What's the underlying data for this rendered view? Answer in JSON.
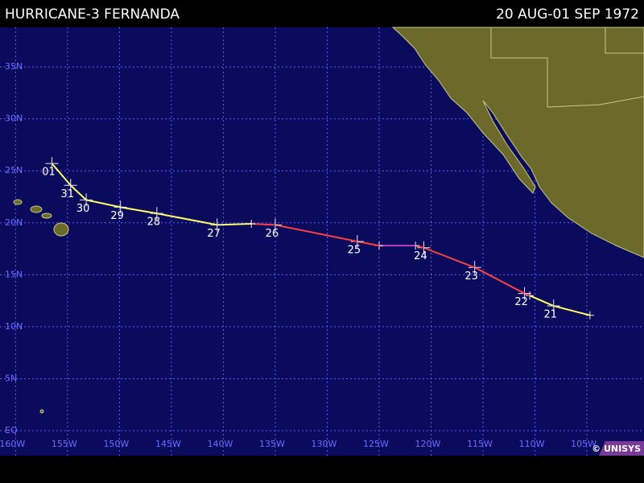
{
  "header": {
    "title": "HURRICANE-3 FERNANDA",
    "dates": "20 AUG-01 SEP 1972"
  },
  "map": {
    "lonlim": [
      161.5,
      99.5
    ],
    "latlim": [
      -2.4,
      38.8
    ],
    "lat_ticks": [
      {
        "value": 35,
        "label": "35N"
      },
      {
        "value": 30,
        "label": "30N"
      },
      {
        "value": 25,
        "label": "25N"
      },
      {
        "value": 20,
        "label": "20N"
      },
      {
        "value": 15,
        "label": "15N"
      },
      {
        "value": 10,
        "label": "10N"
      },
      {
        "value": 5,
        "label": "5N"
      },
      {
        "value": 0,
        "label": "EQ"
      }
    ],
    "lon_ticks": [
      {
        "value": 160,
        "label": "160W"
      },
      {
        "value": 155,
        "label": "155W"
      },
      {
        "value": 150,
        "label": "150W"
      },
      {
        "value": 145,
        "label": "145W"
      },
      {
        "value": 140,
        "label": "140W"
      },
      {
        "value": 135,
        "label": "135W"
      },
      {
        "value": 130,
        "label": "130W"
      },
      {
        "value": 125,
        "label": "125W"
      },
      {
        "value": 120,
        "label": "120W"
      },
      {
        "value": 115,
        "label": "115W"
      },
      {
        "value": 110,
        "label": "110W"
      },
      {
        "value": 105,
        "label": "105W"
      }
    ],
    "track": [
      {
        "lon": 104.7,
        "lat": 11.1,
        "label": null,
        "color": "#ffff66"
      },
      {
        "lon": 108.2,
        "lat": 12.0,
        "label": "21",
        "color": "#ffff66"
      },
      {
        "lon": 110.5,
        "lat": 13.0,
        "label": null,
        "color": "#ffff66"
      },
      {
        "lon": 111.0,
        "lat": 13.2,
        "label": "22",
        "color": "#ff4040"
      },
      {
        "lon": 115.8,
        "lat": 15.7,
        "label": "23",
        "color": "#ff4040"
      },
      {
        "lon": 120.7,
        "lat": 17.6,
        "label": "24",
        "color": "#ff4040"
      },
      {
        "lon": 121.5,
        "lat": 17.8,
        "label": null,
        "color": "#ff4040"
      },
      {
        "lon": 125.0,
        "lat": 17.8,
        "label": null,
        "color": "#c040c0"
      },
      {
        "lon": 127.1,
        "lat": 18.2,
        "label": "25",
        "color": "#ff4040"
      },
      {
        "lon": 135.0,
        "lat": 19.8,
        "label": "26",
        "color": "#ff4040"
      },
      {
        "lon": 137.3,
        "lat": 19.9,
        "label": null,
        "color": "#ff4040"
      },
      {
        "lon": 140.6,
        "lat": 19.8,
        "label": "27",
        "color": "#ffff66"
      },
      {
        "lon": 146.4,
        "lat": 20.9,
        "label": "28",
        "color": "#ffff66"
      },
      {
        "lon": 149.9,
        "lat": 21.5,
        "label": "29",
        "color": "#ffff66"
      },
      {
        "lon": 153.2,
        "lat": 22.2,
        "label": "30",
        "color": "#ffff66"
      },
      {
        "lon": 154.7,
        "lat": 23.6,
        "label": "31",
        "color": "#ffff66"
      },
      {
        "lon": 156.5,
        "lat": 25.7,
        "label": "01",
        "color": "#ffff66"
      }
    ]
  },
  "footer": {
    "credit": "© UNISYS"
  }
}
